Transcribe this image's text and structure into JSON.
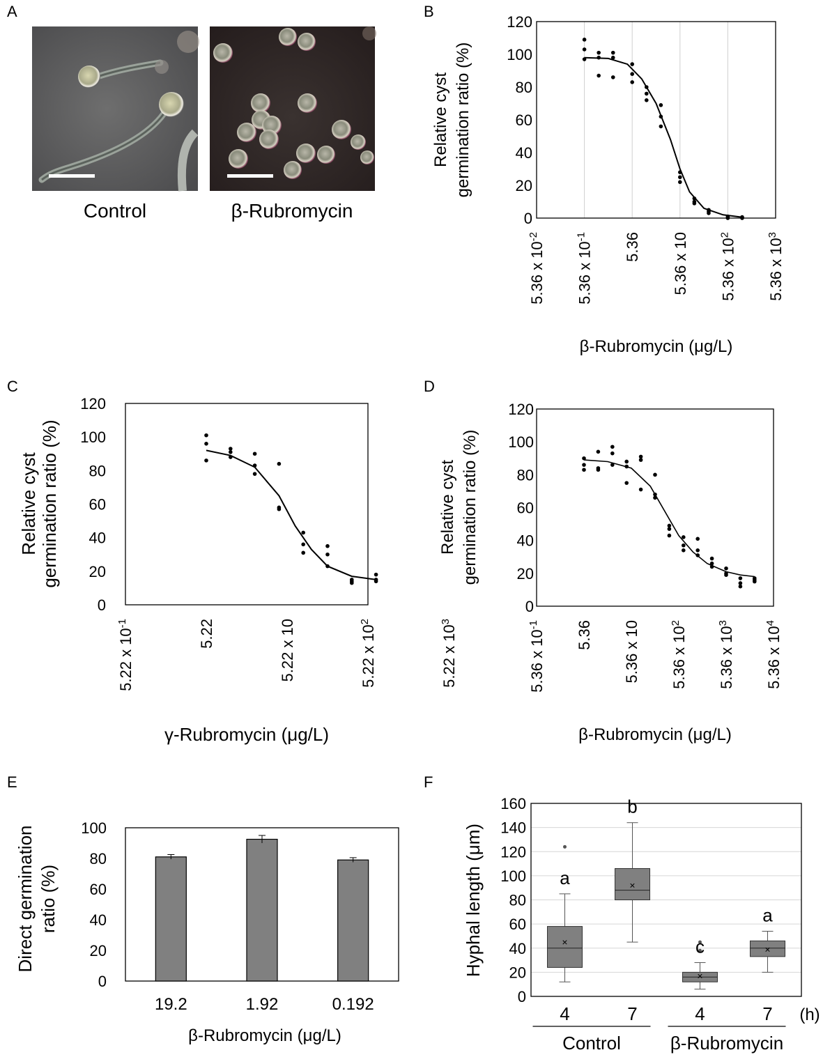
{
  "panels": {
    "A": {
      "letter": "A",
      "captions": [
        "Control",
        "β-Rubromycin"
      ]
    },
    "B": {
      "letter": "B"
    },
    "C": {
      "letter": "C"
    },
    "D": {
      "letter": "D"
    },
    "E": {
      "letter": "E"
    },
    "F": {
      "letter": "F"
    }
  },
  "chart_data": [
    {
      "id": "B",
      "type": "scatter",
      "xlabel": "β-Rubromycin (μg/L)",
      "ylabel_lines": [
        "Relative cyst",
        "germination ratio (%)"
      ],
      "yticks": [
        0,
        20,
        40,
        60,
        80,
        100,
        120
      ],
      "ylim": [
        0,
        120
      ],
      "xscale": "log",
      "xlim_log10": [
        -1.271,
        3.729
      ],
      "xticks": [
        {
          "base": "5.36 x 10",
          "sup": "-2",
          "log10": -1.271
        },
        {
          "base": "5.36 x 10",
          "sup": "-1",
          "log10": -0.271
        },
        {
          "base": "5.36",
          "sup": "",
          "log10": 0.729
        },
        {
          "base": "5.36 x 10",
          "sup": "",
          "log10": 1.729
        },
        {
          "base": "5.36 x 10",
          "sup": "2",
          "log10": 2.729
        },
        {
          "base": "5.36 x 10",
          "sup": "3",
          "log10": 3.729
        }
      ],
      "grid": "vertical",
      "points": [
        [
          -0.271,
          109
        ],
        [
          -0.271,
          103
        ],
        [
          -0.271,
          97
        ],
        [
          0.029,
          101
        ],
        [
          0.029,
          98
        ],
        [
          0.029,
          87
        ],
        [
          0.329,
          101
        ],
        [
          0.329,
          98
        ],
        [
          0.329,
          86
        ],
        [
          0.729,
          94
        ],
        [
          0.729,
          88
        ],
        [
          0.729,
          83
        ],
        [
          1.029,
          80
        ],
        [
          1.029,
          76
        ],
        [
          1.029,
          72
        ],
        [
          1.329,
          69
        ],
        [
          1.329,
          62
        ],
        [
          1.329,
          56
        ],
        [
          1.729,
          28
        ],
        [
          1.729,
          25
        ],
        [
          1.729,
          22
        ],
        [
          2.029,
          12
        ],
        [
          2.029,
          10
        ],
        [
          2.029,
          9
        ],
        [
          2.329,
          5
        ],
        [
          2.329,
          4
        ],
        [
          2.329,
          3
        ],
        [
          2.729,
          1
        ],
        [
          2.729,
          0.5
        ],
        [
          2.729,
          0
        ],
        [
          3.029,
          0.6
        ],
        [
          3.029,
          0.3
        ],
        [
          3.029,
          0
        ]
      ],
      "curve": [
        [
          -0.271,
          98
        ],
        [
          0.229,
          97.5
        ],
        [
          0.629,
          94
        ],
        [
          0.929,
          85
        ],
        [
          1.229,
          70
        ],
        [
          1.529,
          48
        ],
        [
          1.729,
          30
        ],
        [
          1.929,
          16
        ],
        [
          2.229,
          6
        ],
        [
          2.629,
          2
        ],
        [
          3.029,
          0.5
        ]
      ]
    },
    {
      "id": "C",
      "type": "scatter",
      "xlabel": "γ-Rubromycin (μg/L)",
      "ylabel_lines": [
        "Relative cyst",
        "germination ratio (%)"
      ],
      "yticks": [
        0,
        20,
        40,
        60,
        80,
        100,
        120
      ],
      "ylim": [
        0,
        120
      ],
      "xscale": "log",
      "xlim_log10": [
        -0.282,
        2.718
      ],
      "xticks": [
        {
          "base": "5.22 x 10",
          "sup": "-1",
          "log10": -0.282
        },
        {
          "base": "5.22",
          "sup": "",
          "log10": 0.718
        },
        {
          "base": "5.22 x 10",
          "sup": "",
          "log10": 1.718
        },
        {
          "base": "5.22 x 10",
          "sup": "2",
          "log10": 2.718
        },
        {
          "base": "5.22 x 10",
          "sup": "3",
          "log10": 3.718
        }
      ],
      "grid": "none",
      "points": [
        [
          0.718,
          101
        ],
        [
          0.718,
          96
        ],
        [
          0.718,
          86
        ],
        [
          1.018,
          93
        ],
        [
          1.018,
          91
        ],
        [
          1.018,
          88
        ],
        [
          1.318,
          90
        ],
        [
          1.318,
          83
        ],
        [
          1.318,
          78
        ],
        [
          1.618,
          84
        ],
        [
          1.618,
          58
        ],
        [
          1.618,
          57
        ],
        [
          1.918,
          43
        ],
        [
          1.918,
          36
        ],
        [
          1.918,
          31
        ],
        [
          2.218,
          35
        ],
        [
          2.218,
          30
        ],
        [
          2.218,
          23
        ],
        [
          2.518,
          15
        ],
        [
          2.518,
          14
        ],
        [
          2.518,
          13
        ],
        [
          2.818,
          18
        ],
        [
          2.818,
          15
        ],
        [
          2.818,
          14
        ]
      ],
      "curve": [
        [
          0.718,
          92
        ],
        [
          1.018,
          89
        ],
        [
          1.318,
          82
        ],
        [
          1.618,
          65
        ],
        [
          1.818,
          47
        ],
        [
          2.018,
          33
        ],
        [
          2.218,
          23
        ],
        [
          2.518,
          17
        ],
        [
          2.818,
          15
        ]
      ]
    },
    {
      "id": "D",
      "type": "scatter",
      "xlabel": "β-Rubromycin (μg/L)",
      "ylabel_lines": [
        "Relative cyst",
        "germination ratio (%)"
      ],
      "yticks": [
        0,
        20,
        40,
        60,
        80,
        100,
        120
      ],
      "ylim": [
        0,
        120
      ],
      "xscale": "log",
      "xlim_log10": [
        -0.271,
        4.729
      ],
      "xticks": [
        {
          "base": "5.36 x 10",
          "sup": "-1",
          "log10": -0.271
        },
        {
          "base": "5.36",
          "sup": "",
          "log10": 0.729
        },
        {
          "base": "5.36 x 10",
          "sup": "",
          "log10": 1.729
        },
        {
          "base": "5.36 x 10",
          "sup": "2",
          "log10": 2.729
        },
        {
          "base": "5.36 x 10",
          "sup": "3",
          "log10": 3.729
        },
        {
          "base": "5.36 x 10",
          "sup": "4",
          "log10": 4.729
        }
      ],
      "grid": "none",
      "points": [
        [
          0.729,
          90
        ],
        [
          0.729,
          86
        ],
        [
          0.729,
          83
        ],
        [
          1.029,
          94
        ],
        [
          1.029,
          84
        ],
        [
          1.029,
          83
        ],
        [
          1.329,
          97
        ],
        [
          1.329,
          93
        ],
        [
          1.329,
          86
        ],
        [
          1.629,
          88
        ],
        [
          1.629,
          85
        ],
        [
          1.629,
          75
        ],
        [
          1.929,
          91
        ],
        [
          1.929,
          89
        ],
        [
          1.929,
          71
        ],
        [
          2.229,
          80
        ],
        [
          2.229,
          68
        ],
        [
          2.229,
          66
        ],
        [
          2.529,
          49
        ],
        [
          2.529,
          47
        ],
        [
          2.529,
          43
        ],
        [
          2.829,
          42
        ],
        [
          2.829,
          37
        ],
        [
          2.829,
          34
        ],
        [
          3.129,
          41
        ],
        [
          3.129,
          34
        ],
        [
          3.129,
          31
        ],
        [
          3.429,
          29
        ],
        [
          3.429,
          26
        ],
        [
          3.429,
          24
        ],
        [
          3.729,
          23
        ],
        [
          3.729,
          20
        ],
        [
          3.729,
          19
        ],
        [
          4.029,
          17
        ],
        [
          4.029,
          14
        ],
        [
          4.029,
          12
        ],
        [
          4.329,
          17
        ],
        [
          4.329,
          16
        ],
        [
          4.329,
          15
        ]
      ],
      "curve": [
        [
          0.729,
          89
        ],
        [
          1.229,
          88
        ],
        [
          1.729,
          84
        ],
        [
          2.129,
          73
        ],
        [
          2.429,
          58
        ],
        [
          2.729,
          43
        ],
        [
          3.029,
          33
        ],
        [
          3.329,
          26
        ],
        [
          3.729,
          21
        ],
        [
          4.029,
          19
        ],
        [
          4.329,
          18
        ]
      ]
    },
    {
      "id": "E",
      "type": "bar",
      "categories": [
        "19.2",
        "1.92",
        "0.192"
      ],
      "values": [
        81,
        92.5,
        79
      ],
      "errors": [
        1.5,
        2.5,
        1.5
      ],
      "xlabel": "β-Rubromycin (μg/L)",
      "ylabel_lines": [
        "Direct germination",
        "ratio (%)"
      ],
      "yticks": [
        0,
        20,
        40,
        60,
        80,
        100
      ],
      "ylim": [
        0,
        100
      ],
      "bar_color": "#808080"
    },
    {
      "id": "F",
      "type": "box",
      "categories": [
        "4",
        "7",
        "4",
        "7"
      ],
      "unit_label": "(h)",
      "groups": [
        {
          "label": "Control",
          "members": [
            0,
            1
          ]
        },
        {
          "label": "β-Rubromycin",
          "members": [
            2,
            3
          ]
        }
      ],
      "boxes": [
        {
          "min": 12,
          "q1": 24,
          "median": 40,
          "q3": 58,
          "max": 85,
          "mean": 45,
          "outliers": [
            124
          ],
          "letter": "a"
        },
        {
          "min": 45,
          "q1": 80,
          "median": 88,
          "q3": 106,
          "max": 144,
          "mean": 92,
          "outliers": [],
          "letter": "b"
        },
        {
          "min": 6,
          "q1": 12,
          "median": 16,
          "q3": 20,
          "max": 28,
          "mean": 17,
          "outliers": [
            38,
            45
          ],
          "letter": "c"
        },
        {
          "min": 20,
          "q1": 33,
          "median": 40,
          "q3": 46,
          "max": 54,
          "mean": 39,
          "outliers": [],
          "letter": "a"
        }
      ],
      "ylabel": "Hyphal length (μm)",
      "yticks": [
        0,
        20,
        40,
        60,
        80,
        100,
        120,
        140,
        160
      ],
      "ylim": [
        0,
        160
      ],
      "grid": "horizontal",
      "box_color": "#808080"
    }
  ]
}
